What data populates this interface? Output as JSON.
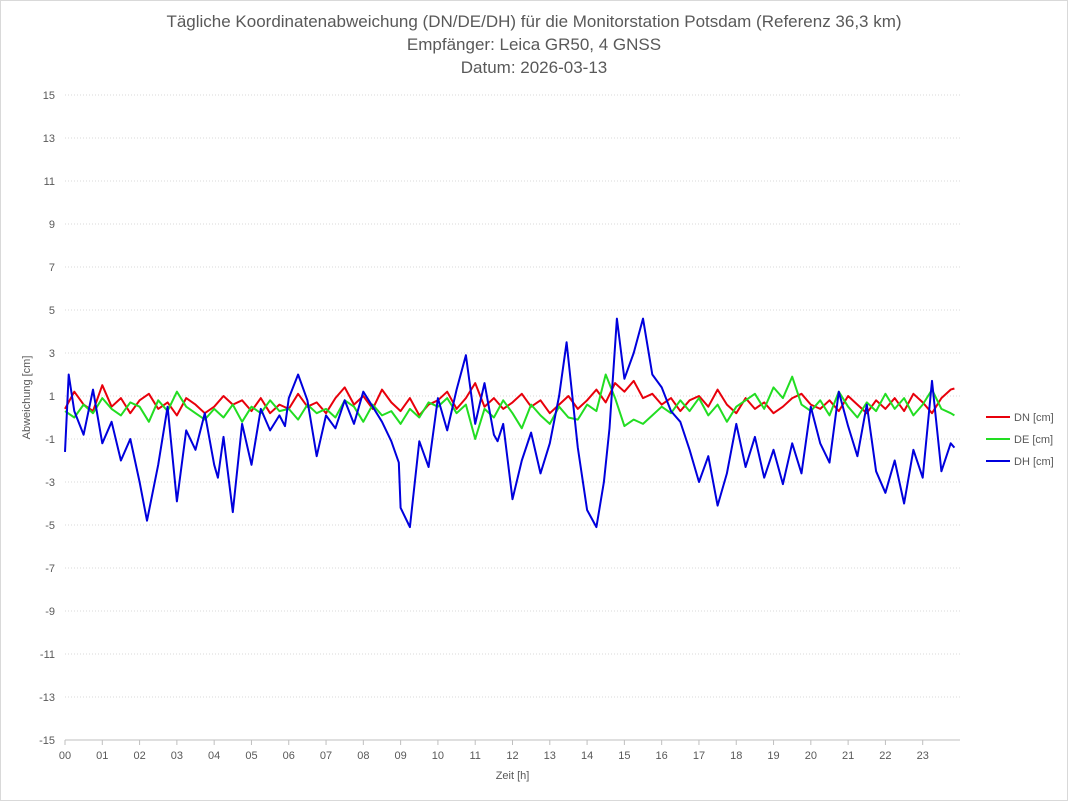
{
  "chart_data": {
    "type": "line",
    "title": [
      "Tägliche Koordinatenabweichung (DN/DE/DH) für die Monitorstation Potsdam (Referenz 36,3 km)",
      "Empfänger: Leica GR50, 4 GNSS",
      "Datum: 2026-03-13"
    ],
    "xlabel": "Zeit [h]",
    "ylabel": "Abweichung [cm]",
    "xlim": [
      0,
      24
    ],
    "ylim": [
      -15,
      15
    ],
    "x_ticks": [
      "00",
      "01",
      "02",
      "03",
      "04",
      "05",
      "06",
      "07",
      "08",
      "09",
      "10",
      "11",
      "12",
      "13",
      "14",
      "15",
      "16",
      "17",
      "18",
      "19",
      "20",
      "21",
      "22",
      "23"
    ],
    "y_ticks": [
      15,
      13,
      11,
      9,
      7,
      5,
      3,
      1,
      -1,
      -3,
      -5,
      -7,
      -9,
      -11,
      -13,
      -15
    ],
    "grid": "horizontal dotted",
    "legend_position": "right",
    "series": [
      {
        "name": "DN [cm]",
        "color": "#e8000b",
        "x": [
          0,
          0.25,
          0.5,
          0.75,
          1,
          1.25,
          1.5,
          1.75,
          2,
          2.25,
          2.5,
          2.75,
          3,
          3.25,
          3.5,
          3.75,
          4,
          4.25,
          4.5,
          4.75,
          5,
          5.25,
          5.5,
          5.75,
          6,
          6.25,
          6.5,
          6.75,
          7,
          7.25,
          7.5,
          7.75,
          8,
          8.25,
          8.5,
          8.75,
          9,
          9.25,
          9.5,
          9.75,
          10,
          10.25,
          10.5,
          10.75,
          11,
          11.25,
          11.5,
          11.75,
          12,
          12.25,
          12.5,
          12.75,
          13,
          13.25,
          13.5,
          13.75,
          14,
          14.25,
          14.5,
          14.75,
          15,
          15.25,
          15.5,
          15.75,
          16,
          16.25,
          16.5,
          16.75,
          17,
          17.25,
          17.5,
          17.75,
          18,
          18.25,
          18.5,
          18.75,
          19,
          19.25,
          19.5,
          19.75,
          20,
          20.25,
          20.5,
          20.75,
          21,
          21.25,
          21.5,
          21.75,
          22,
          22.25,
          22.5,
          22.75,
          23,
          23.25,
          23.5,
          23.75,
          23.85
        ],
        "values": [
          0.4,
          1.2,
          0.6,
          0.3,
          1.5,
          0.5,
          0.9,
          0.2,
          0.8,
          1.1,
          0.4,
          0.7,
          0.1,
          0.9,
          0.6,
          0.2,
          0.5,
          1.0,
          0.6,
          0.8,
          0.3,
          0.9,
          0.2,
          0.6,
          0.4,
          1.1,
          0.5,
          0.7,
          0.2,
          0.9,
          1.4,
          0.6,
          1.0,
          0.4,
          1.3,
          0.7,
          0.3,
          0.9,
          0.1,
          0.6,
          0.8,
          1.2,
          0.4,
          0.9,
          1.6,
          0.5,
          0.9,
          0.4,
          0.7,
          1.1,
          0.5,
          0.8,
          0.2,
          0.6,
          1.0,
          0.4,
          0.8,
          1.3,
          0.7,
          1.6,
          1.2,
          1.7,
          0.9,
          1.1,
          0.6,
          0.9,
          0.3,
          0.8,
          1.0,
          0.5,
          1.3,
          0.6,
          0.2,
          0.9,
          0.4,
          0.7,
          0.2,
          0.5,
          0.9,
          1.1,
          0.6,
          0.4,
          0.8,
          0.3,
          1.0,
          0.6,
          0.2,
          0.8,
          0.4,
          0.9,
          0.3,
          1.1,
          0.7,
          0.2,
          0.9,
          1.3,
          1.35
        ]
      },
      {
        "name": "DE [cm]",
        "color": "#22dd22",
        "x": [
          0,
          0.25,
          0.5,
          0.75,
          1,
          1.25,
          1.5,
          1.75,
          2,
          2.25,
          2.5,
          2.75,
          3,
          3.25,
          3.5,
          3.75,
          4,
          4.25,
          4.5,
          4.75,
          5,
          5.25,
          5.5,
          5.75,
          6,
          6.25,
          6.5,
          6.75,
          7,
          7.25,
          7.5,
          7.75,
          8,
          8.25,
          8.5,
          8.75,
          9,
          9.25,
          9.5,
          9.75,
          10,
          10.25,
          10.5,
          10.75,
          11,
          11.25,
          11.5,
          11.75,
          12,
          12.25,
          12.5,
          12.75,
          13,
          13.25,
          13.5,
          13.75,
          14,
          14.25,
          14.5,
          14.75,
          15,
          15.25,
          15.5,
          15.75,
          16,
          16.25,
          16.5,
          16.75,
          17,
          17.25,
          17.5,
          17.75,
          18,
          18.25,
          18.5,
          18.75,
          19,
          19.25,
          19.5,
          19.75,
          20,
          20.25,
          20.5,
          20.75,
          21,
          21.25,
          21.5,
          21.75,
          22,
          22.25,
          22.5,
          22.75,
          23,
          23.25,
          23.5,
          23.75,
          23.85
        ],
        "values": [
          0.3,
          0.0,
          0.6,
          0.2,
          0.9,
          0.4,
          0.1,
          0.7,
          0.5,
          -0.2,
          0.8,
          0.3,
          1.2,
          0.5,
          0.2,
          -0.1,
          0.4,
          0.0,
          0.6,
          -0.2,
          0.5,
          0.2,
          0.8,
          0.3,
          0.4,
          -0.1,
          0.6,
          0.2,
          0.4,
          0.0,
          0.8,
          0.5,
          -0.2,
          0.6,
          0.1,
          0.3,
          -0.3,
          0.4,
          0.0,
          0.7,
          0.5,
          0.9,
          0.2,
          0.6,
          -1.0,
          0.4,
          0.0,
          0.8,
          0.2,
          -0.5,
          0.6,
          0.1,
          -0.3,
          0.5,
          0.0,
          -0.1,
          0.6,
          0.3,
          2.0,
          0.9,
          -0.4,
          -0.1,
          -0.3,
          0.1,
          0.5,
          0.2,
          0.8,
          0.3,
          0.9,
          0.1,
          0.6,
          -0.2,
          0.5,
          0.8,
          1.1,
          0.4,
          1.4,
          0.9,
          1.9,
          0.6,
          0.3,
          0.8,
          0.1,
          1.2,
          0.5,
          0.0,
          0.7,
          0.3,
          1.1,
          0.4,
          0.9,
          0.1,
          0.6,
          1.3,
          0.4,
          0.2,
          0.1
        ]
      },
      {
        "name": "DH [cm]",
        "color": "#0000dd",
        "x": [
          0,
          0.1,
          0.25,
          0.5,
          0.75,
          1,
          1.25,
          1.5,
          1.75,
          2,
          2.2,
          2.5,
          2.75,
          3,
          3.25,
          3.5,
          3.75,
          4,
          4.1,
          4.25,
          4.5,
          4.75,
          5,
          5.25,
          5.5,
          5.75,
          5.9,
          6.0,
          6.25,
          6.5,
          6.75,
          7,
          7.25,
          7.5,
          7.75,
          8,
          8.25,
          8.5,
          8.75,
          8.95,
          9,
          9.25,
          9.5,
          9.75,
          10,
          10.25,
          10.5,
          10.75,
          11,
          11.25,
          11.5,
          11.6,
          11.75,
          12,
          12.25,
          12.5,
          12.75,
          13,
          13.25,
          13.45,
          13.75,
          14,
          14.25,
          14.45,
          14.6,
          14.8,
          15,
          15.25,
          15.5,
          15.75,
          16,
          16.25,
          16.5,
          16.75,
          17,
          17.25,
          17.5,
          17.75,
          18,
          18.25,
          18.5,
          18.75,
          19,
          19.25,
          19.5,
          19.75,
          20,
          20.25,
          20.5,
          20.75,
          21,
          21.25,
          21.5,
          21.75,
          22,
          22.25,
          22.5,
          22.75,
          23,
          23.25,
          23.5,
          23.75,
          23.85
        ],
        "values": [
          -1.6,
          2.0,
          0.3,
          -0.8,
          1.3,
          -1.2,
          -0.2,
          -2.0,
          -1.0,
          -3.0,
          -4.8,
          -2.2,
          0.5,
          -3.9,
          -0.6,
          -1.5,
          0.2,
          -2.2,
          -2.8,
          -0.9,
          -4.4,
          -0.3,
          -2.2,
          0.4,
          -0.6,
          0.1,
          -0.4,
          0.9,
          2.0,
          0.8,
          -1.8,
          0.1,
          -0.5,
          0.8,
          -0.3,
          1.2,
          0.5,
          -0.2,
          -1.1,
          -2.1,
          -4.2,
          -5.1,
          -1.1,
          -2.3,
          0.9,
          -0.6,
          1.3,
          2.9,
          -0.3,
          1.6,
          -0.8,
          -1.1,
          -0.3,
          -3.8,
          -2.0,
          -0.7,
          -2.6,
          -1.2,
          1.0,
          3.5,
          -1.4,
          -4.3,
          -5.1,
          -3.0,
          -0.5,
          4.6,
          1.8,
          3.0,
          4.6,
          2.0,
          1.4,
          0.3,
          -0.2,
          -1.5,
          -3.0,
          -1.8,
          -4.1,
          -2.6,
          -0.3,
          -2.3,
          -0.9,
          -2.8,
          -1.5,
          -3.1,
          -1.2,
          -2.6,
          0.5,
          -1.2,
          -2.1,
          1.2,
          -0.4,
          -1.8,
          0.6,
          -2.5,
          -3.5,
          -2.0,
          -4.0,
          -1.5,
          -2.8,
          1.7,
          -2.5,
          -1.2,
          -1.4
        ]
      }
    ]
  }
}
